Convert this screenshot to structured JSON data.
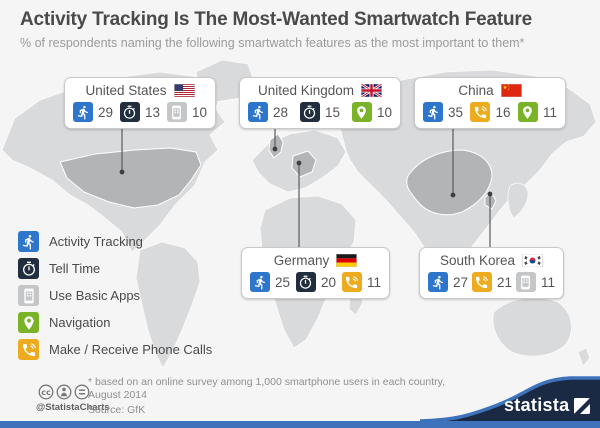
{
  "page": {
    "title": "Activity Tracking Is The Most-Wanted Smartwatch Feature",
    "subtitle": "% of respondents naming the following smartwatch features as the most important to them*"
  },
  "chart_data": {
    "type": "map-infographic",
    "title": "Activity Tracking Is The Most-Wanted Smartwatch Feature",
    "subtitle": "% of respondents naming the following smartwatch features as the most important to them*",
    "unit": "% of respondents",
    "legend_position": "left",
    "legend": [
      {
        "label": "Activity Tracking",
        "icon": "runner-icon",
        "color": "#2e76cc"
      },
      {
        "label": "Tell Time",
        "icon": "stopwatch-icon",
        "color": "#202e3e"
      },
      {
        "label": "Use Basic Apps",
        "icon": "smartphone-apps-icon",
        "color": "#c4c6c8"
      },
      {
        "label": "Navigation",
        "icon": "map-pin-icon",
        "color": "#7ab228"
      },
      {
        "label": "Make / Receive Phone Calls",
        "icon": "phone-call-icon",
        "color": "#edac1f"
      }
    ],
    "countries": [
      {
        "name": "United States",
        "flag": "us",
        "values": [
          {
            "feature": "Activity Tracking",
            "value": 29
          },
          {
            "feature": "Tell Time",
            "value": 13
          },
          {
            "feature": "Use Basic Apps",
            "value": 10
          }
        ]
      },
      {
        "name": "United Kingdom",
        "flag": "uk",
        "values": [
          {
            "feature": "Activity Tracking",
            "value": 28
          },
          {
            "feature": "Tell Time",
            "value": 15
          },
          {
            "feature": "Navigation",
            "value": 10
          }
        ]
      },
      {
        "name": "China",
        "flag": "cn",
        "values": [
          {
            "feature": "Activity Tracking",
            "value": 35
          },
          {
            "feature": "Make / Receive Phone Calls",
            "value": 16
          },
          {
            "feature": "Navigation",
            "value": 11
          }
        ]
      },
      {
        "name": "Germany",
        "flag": "de",
        "values": [
          {
            "feature": "Activity Tracking",
            "value": 25
          },
          {
            "feature": "Tell Time",
            "value": 20
          },
          {
            "feature": "Make / Receive Phone Calls",
            "value": 11
          }
        ]
      },
      {
        "name": "South Korea",
        "flag": "kr",
        "values": [
          {
            "feature": "Activity Tracking",
            "value": 27
          },
          {
            "feature": "Make / Receive Phone Calls",
            "value": 21
          },
          {
            "feature": "Use Basic Apps",
            "value": 11
          }
        ]
      }
    ]
  },
  "footer": {
    "note_line1": "* based on an online survey among 1,000 smartphone users in each country,",
    "note_line2": "August 2014",
    "source": "Source: GfK",
    "credit": "@StatistaCharts",
    "brand": "statista"
  },
  "colors": {
    "accent_blue": "#2e76cc",
    "navy": "#1b2a44",
    "bar_blue": "#3e73bb",
    "map_land": "#d9dadb",
    "map_highlight": "#b2b4b6"
  }
}
